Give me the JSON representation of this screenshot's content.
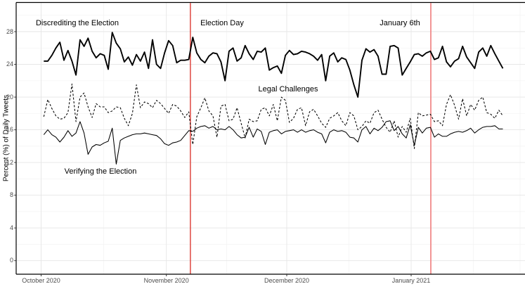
{
  "chart_data": {
    "type": "line",
    "title": "",
    "xlabel": "",
    "ylabel": "Percent (%) of Daily Tweets",
    "ylim": [
      0,
      30
    ],
    "y_ticks": [
      0,
      4,
      8,
      12,
      16,
      20,
      24,
      28
    ],
    "x_ticks": [
      "October 2020",
      "November 2020",
      "December 2020",
      "January 2021"
    ],
    "grid": "on",
    "legend_position": "none (direct labels)",
    "x_unit": "day index from first plotted day (daily data, Oct 2020 - late Jan 2021)",
    "series": [
      {
        "name": "Discrediting the Election",
        "style": "solid-thick",
        "color": "#000000",
        "values": [
          24.4,
          24.4,
          25.1,
          26.0,
          26.7,
          24.5,
          25.7,
          24.4,
          22.7,
          27.0,
          26.2,
          27.2,
          25.6,
          24.8,
          25.3,
          25.1,
          23.4,
          27.9,
          26.6,
          25.9,
          24.3,
          24.9,
          23.9,
          25.2,
          24.4,
          25.5,
          23.5,
          27.0,
          24.0,
          23.5,
          25.4,
          26.9,
          26.3,
          24.2,
          24.5,
          24.5,
          24.6,
          27.3,
          25.4,
          24.6,
          24.2,
          25.0,
          25.4,
          25.3,
          24.3,
          22.0,
          25.6,
          26.0,
          24.4,
          24.8,
          26.3,
          25.3,
          24.6,
          25.6,
          25.5,
          26.0,
          23.3,
          23.6,
          23.8,
          22.9,
          25.1,
          25.7,
          25.2,
          25.3,
          25.6,
          25.5,
          25.3,
          25.0,
          24.5,
          25.2,
          22.0,
          25.0,
          25.4,
          24.3,
          24.8,
          24.6,
          23.3,
          21.5,
          20.0,
          24.5,
          25.9,
          25.5,
          25.8,
          25.0,
          22.8,
          22.8,
          26.2,
          26.3,
          26.0,
          22.7,
          23.5,
          24.3,
          25.2,
          25.3,
          25.0,
          25.4,
          25.6,
          24.6,
          24.8,
          26.2,
          24.3,
          23.7,
          24.4,
          24.7,
          26.2,
          24.9,
          24.2,
          23.5,
          25.5,
          26.0,
          25.0,
          26.3,
          25.3,
          24.4,
          23.5
        ]
      },
      {
        "name": "Legal Challenges",
        "style": "dashed",
        "color": "#000000",
        "values": [
          17.6,
          19.7,
          18.6,
          17.7,
          17.3,
          17.4,
          18.1,
          21.6,
          17.0,
          20.0,
          20.5,
          18.8,
          17.5,
          19.2,
          18.8,
          18.8,
          18.1,
          18.3,
          18.8,
          18.7,
          17.4,
          16.5,
          18.0,
          21.5,
          18.7,
          19.4,
          19.2,
          18.7,
          19.6,
          19.2,
          18.6,
          18.0,
          19.1,
          18.9,
          18.3,
          17.5,
          18.2,
          14.2,
          17.6,
          18.7,
          19.9,
          18.3,
          17.7,
          15.1,
          18.9,
          19.1,
          17.1,
          17.3,
          18.7,
          16.8,
          15.0,
          17.3,
          17.0,
          17.1,
          18.5,
          18.7,
          17.7,
          19.1,
          17.1,
          20.0,
          19.6,
          16.9,
          17.4,
          18.5,
          18.7,
          16.5,
          18.2,
          18.5,
          17.7,
          16.8,
          16.3,
          17.4,
          17.7,
          18.1,
          17.1,
          16.5,
          18.1,
          17.7,
          16.0,
          16.4,
          17.1,
          16.8,
          18.1,
          18.4,
          17.3,
          16.3,
          15.7,
          17.1,
          15.1,
          16.4,
          15.7,
          17.4,
          13.7,
          18.1,
          17.7,
          17.8,
          17.9,
          17.0,
          17.1,
          16.5,
          19.1,
          20.3,
          19.0,
          17.3,
          19.8,
          17.7,
          19.1,
          18.4,
          19.6,
          20.0,
          18.1,
          17.9,
          17.4,
          18.4,
          17.7
        ]
      },
      {
        "name": "Verifying the Election",
        "style": "solid-thin",
        "color": "#000000",
        "values": [
          15.4,
          16.0,
          15.4,
          15.1,
          14.5,
          15.1,
          15.9,
          15.2,
          15.6,
          17.0,
          15.6,
          13.0,
          13.9,
          14.2,
          14.1,
          14.4,
          14.6,
          16.2,
          11.8,
          14.7,
          15.0,
          15.2,
          15.4,
          15.5,
          15.5,
          15.6,
          15.5,
          15.4,
          15.3,
          14.9,
          14.3,
          14.1,
          14.4,
          14.5,
          14.7,
          15.3,
          15.9,
          15.8,
          16.2,
          16.4,
          16.5,
          16.2,
          16.4,
          16.0,
          16.1,
          16.0,
          16.4,
          16.0,
          15.4,
          15.0,
          15.1,
          16.3,
          15.1,
          16.1,
          15.8,
          14.2,
          15.7,
          15.9,
          16.0,
          15.5,
          15.8,
          15.9,
          16.0,
          15.7,
          16.0,
          15.7,
          15.9,
          16.0,
          15.7,
          15.5,
          14.4,
          15.7,
          16.0,
          15.8,
          15.9,
          15.7,
          15.1,
          15.0,
          14.5,
          16.0,
          16.4,
          15.5,
          16.2,
          15.9,
          16.3,
          17.0,
          17.1,
          15.9,
          16.4,
          15.5,
          15.0,
          16.6,
          14.1,
          16.3,
          15.6,
          16.2,
          16.3,
          15.1,
          15.5,
          15.2,
          15.2,
          15.5,
          15.7,
          15.8,
          15.7,
          15.9,
          16.2,
          15.6,
          16.0,
          16.3,
          16.4,
          16.4,
          16.5,
          16.1,
          16.1
        ]
      }
    ],
    "vlines": [
      {
        "label": "Election Day",
        "x_day": 36.4,
        "color": "#dc3a32",
        "width": 1.4
      },
      {
        "label": "January 6th",
        "x_day": 96.1,
        "color": "#f29090",
        "width": 1.9
      }
    ],
    "annotations": [
      {
        "id": "discrediting",
        "text": "Discrediting the Election"
      },
      {
        "id": "election-day",
        "text": "Election Day"
      },
      {
        "id": "january-6th",
        "text": "January 6th"
      },
      {
        "id": "legal-challenges",
        "text": "Legal Challenges"
      },
      {
        "id": "verifying",
        "text": "Verifying the Election"
      }
    ],
    "colors": {
      "line": "#000000",
      "grid_major": "#e6e6e6",
      "grid_minor": "#f3f3f3",
      "axis": "#000000",
      "tick_text": "#4d4d4d",
      "vline_election": "#dc3a32",
      "vline_jan6": "#f29090"
    }
  }
}
